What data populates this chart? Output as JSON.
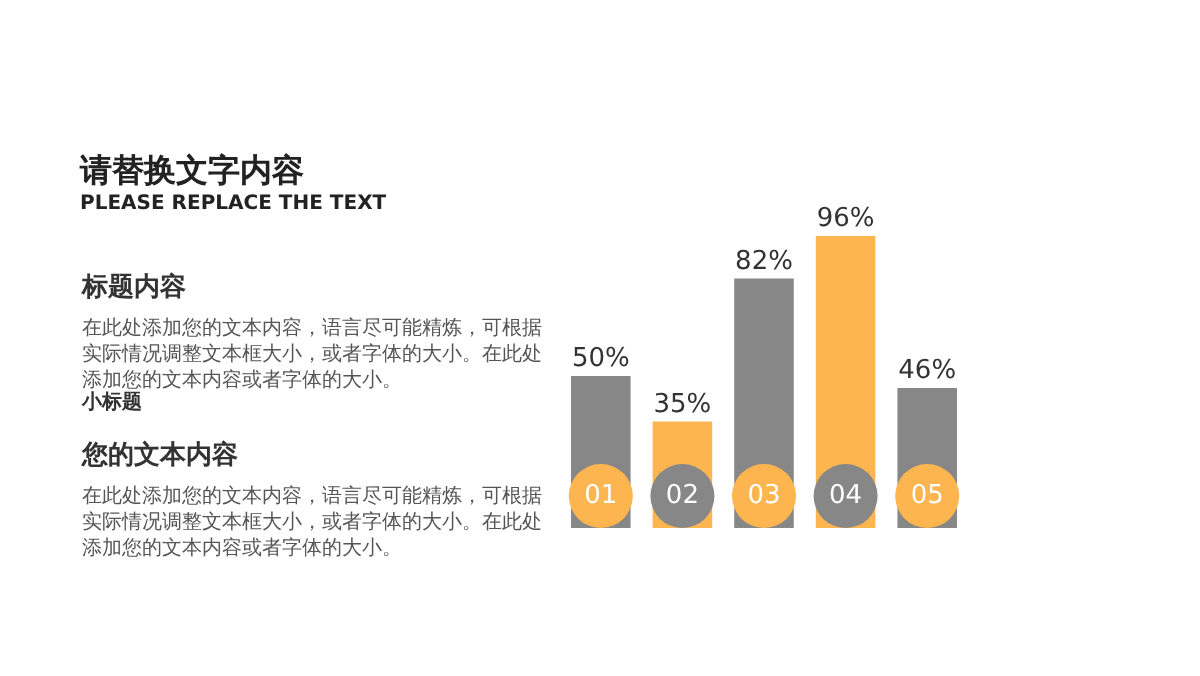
{
  "chart_data": {
    "type": "bar",
    "title": "请替换文字内容",
    "subtitle": "PLEASE REPLACE THE TEXT",
    "annotations": [
      "标题内容",
      "在此处添加您的文本内容，语言尽可能精炼，可根据实际情况调整文本框大小，或者字体的大小。在此处添加您的文本内容或者字体的大小。",
      "小标题",
      "您的文本内容",
      "在此处添加您的文本内容，语言尽可能精炼，可根据实际情况调整文本框大小，或者字体的大小。在此处添加您的文本内容或者字体的大小。"
    ],
    "categories": [
      "01",
      "02",
      "03",
      "04",
      "05"
    ],
    "values": [
      50,
      35,
      82,
      96,
      46
    ],
    "value_labels": [
      "50%",
      "35%",
      "82%",
      "96%",
      "46%"
    ],
    "colors": [
      "#878787",
      "#fdb64f",
      "#878787",
      "#fdb64f",
      "#878787"
    ]
  }
}
